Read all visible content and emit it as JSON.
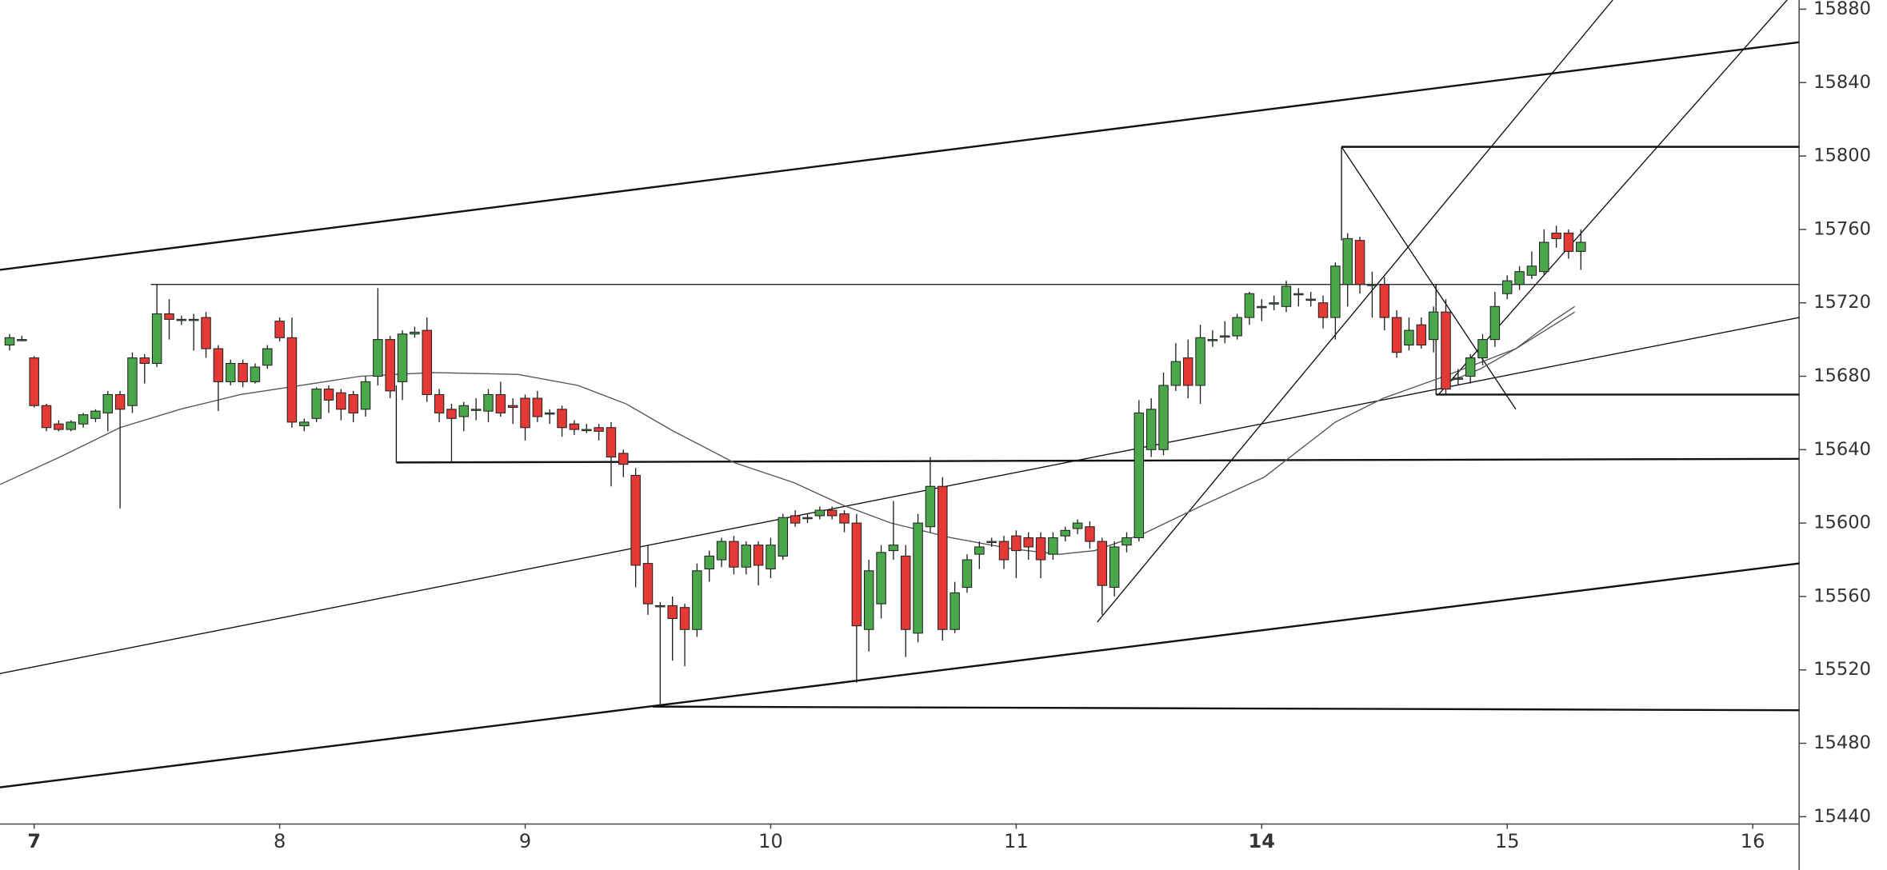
{
  "chart_data": {
    "type": "candlestick",
    "up_color": "#4aa84a",
    "down_color": "#e53935",
    "xlim": [
      -0.78,
      145.78
    ],
    "ylim": [
      15436,
      15885
    ],
    "xticks": [
      {
        "value": 2,
        "label": "7"
      },
      {
        "value": 22,
        "label": "8"
      },
      {
        "value": 42,
        "label": "9"
      },
      {
        "value": 62,
        "label": "10"
      },
      {
        "value": 82,
        "label": "11"
      },
      {
        "value": 102,
        "label": "14"
      },
      {
        "value": 122,
        "label": "15"
      },
      {
        "value": 142,
        "label": "16"
      }
    ],
    "yticks": [
      15440,
      15480,
      15520,
      15560,
      15600,
      15640,
      15680,
      15720,
      15760,
      15800,
      15840,
      15880
    ],
    "x": [
      0,
      1,
      2,
      3,
      4,
      5,
      6,
      7,
      8,
      9,
      10,
      11,
      12,
      13,
      14,
      15,
      16,
      17,
      18,
      19,
      20,
      21,
      22,
      23,
      24,
      25,
      26,
      27,
      28,
      29,
      30,
      31,
      32,
      33,
      34,
      35,
      36,
      37,
      38,
      39,
      40,
      41,
      42,
      43,
      44,
      45,
      46,
      47,
      48,
      49,
      50,
      51,
      52,
      53,
      54,
      55,
      56,
      57,
      58,
      59,
      60,
      61,
      62,
      63,
      64,
      65,
      66,
      67,
      68,
      69,
      70,
      71,
      72,
      73,
      74,
      75,
      76,
      77,
      78,
      79,
      80,
      81,
      82,
      83,
      84,
      85,
      86,
      87,
      88,
      89,
      90,
      91,
      92,
      93,
      94,
      95,
      96,
      97,
      98,
      99,
      100,
      101,
      102,
      103,
      104,
      105,
      106,
      107,
      108,
      109,
      110,
      111,
      112,
      113,
      114,
      115,
      116,
      117,
      118,
      119,
      120,
      121,
      122,
      123,
      124,
      125,
      126,
      127,
      128
    ],
    "open": [
      15697,
      15700,
      15690,
      15664,
      15654,
      15651,
      15654,
      15657,
      15660,
      15670,
      15664,
      15690,
      15687,
      15714,
      15711,
      15711,
      15712,
      15695,
      15677,
      15687,
      15677,
      15686,
      15710,
      15701,
      15653,
      15657,
      15673,
      15671,
      15670,
      15662,
      15680,
      15700,
      15677,
      15703,
      15705,
      15670,
      15662,
      15658,
      15662,
      15661,
      15670,
      15664,
      15668,
      15668,
      15660,
      15662,
      15654,
      15651,
      15652,
      15652,
      15638,
      15626,
      15578,
      15555,
      15555,
      15554,
      15542,
      15575,
      15580,
      15590,
      15576,
      15588,
      15575,
      15582,
      15604,
      15603,
      15604,
      15607,
      15605,
      15600,
      15542,
      15556,
      15585,
      15582,
      15540,
      15598,
      15620,
      15542,
      15565,
      15583,
      15590,
      15590,
      15593,
      15592,
      15592,
      15583,
      15593,
      15597,
      15598,
      15590,
      15565,
      15588,
      15592,
      15640,
      15640,
      15675,
      15690,
      15675,
      15700,
      15702,
      15702,
      15712,
      15718,
      15720,
      15718,
      15725,
      15722,
      15720,
      15712,
      15730,
      15754,
      15730,
      15730,
      15712,
      15697,
      15708,
      15700,
      15715,
      15679,
      15680,
      15690,
      15700,
      15725,
      15730,
      15735,
      15737,
      15758,
      15758,
      15748
    ],
    "high": [
      15703,
      15702,
      15691,
      15665,
      15656,
      15656,
      15660,
      15662,
      15672,
      15672,
      15693,
      15692,
      15730,
      15722,
      15713,
      15714,
      15715,
      15697,
      15689,
      15689,
      15687,
      15697,
      15712,
      15712,
      15657,
      15674,
      15675,
      15673,
      15672,
      15680,
      15728,
      15702,
      15705,
      15707,
      15712,
      15673,
      15665,
      15666,
      15668,
      15673,
      15677,
      15668,
      15670,
      15672,
      15662,
      15664,
      15656,
      15654,
      15654,
      15655,
      15640,
      15630,
      15588,
      15557,
      15560,
      15556,
      15578,
      15585,
      15592,
      15593,
      15590,
      15590,
      15592,
      15605,
      15607,
      15605,
      15609,
      15609,
      15607,
      15605,
      15580,
      15588,
      15612,
      15588,
      15605,
      15636,
      15625,
      15568,
      15583,
      15590,
      15592,
      15593,
      15596,
      15595,
      15595,
      15595,
      15598,
      15602,
      15601,
      15592,
      15590,
      15595,
      15667,
      15668,
      15682,
      15698,
      15700,
      15708,
      15705,
      15710,
      15714,
      15726,
      15722,
      15724,
      15732,
      15728,
      15726,
      15724,
      15742,
      15758,
      15756,
      15737,
      15734,
      15716,
      15712,
      15712,
      15718,
      15722,
      15684,
      15692,
      15703,
      15726,
      15735,
      15740,
      15748,
      15760,
      15762,
      15760,
      15760
    ],
    "low": [
      15694,
      15699,
      15663,
      15650,
      15650,
      15650,
      15652,
      15655,
      15650,
      15608,
      15660,
      15676,
      15685,
      15700,
      15708,
      15694,
      15690,
      15661,
      15675,
      15674,
      15676,
      15684,
      15699,
      15652,
      15650,
      15655,
      15660,
      15656,
      15655,
      15658,
      15675,
      15668,
      15667,
      15701,
      15666,
      15655,
      15633,
      15650,
      15656,
      15655,
      15658,
      15654,
      15645,
      15655,
      15654,
      15647,
      15648,
      15649,
      15645,
      15620,
      15625,
      15565,
      15550,
      15500,
      15525,
      15522,
      15538,
      15568,
      15576,
      15572,
      15572,
      15566,
      15570,
      15580,
      15598,
      15600,
      15602,
      15602,
      15595,
      15513,
      15530,
      15548,
      15580,
      15527,
      15535,
      15595,
      15536,
      15540,
      15562,
      15575,
      15587,
      15575,
      15570,
      15580,
      15570,
      15580,
      15590,
      15594,
      15586,
      15550,
      15560,
      15584,
      15590,
      15636,
      15637,
      15672,
      15668,
      15665,
      15696,
      15698,
      15700,
      15708,
      15710,
      15716,
      15715,
      15718,
      15718,
      15706,
      15700,
      15718,
      15725,
      15712,
      15705,
      15690,
      15694,
      15695,
      15693,
      15670,
      15675,
      15676,
      15686,
      15696,
      15722,
      15727,
      15733,
      15735,
      15750,
      15744,
      15738
    ],
    "close": [
      15701,
      15700,
      15664,
      15652,
      15651,
      15655,
      15659,
      15661,
      15670,
      15662,
      15690,
      15687,
      15714,
      15711,
      15711,
      15711,
      15695,
      15677,
      15687,
      15677,
      15685,
      15695,
      15701,
      15655,
      15655,
      15673,
      15667,
      15662,
      15660,
      15677,
      15700,
      15672,
      15703,
      15704,
      15670,
      15660,
      15657,
      15664,
      15662,
      15670,
      15660,
      15663,
      15652,
      15658,
      15660,
      15652,
      15651,
      15651,
      15650,
      15636,
      15632,
      15577,
      15556,
      15555,
      15548,
      15542,
      15574,
      15582,
      15590,
      15576,
      15588,
      15577,
      15588,
      15603,
      15600,
      15603,
      15607,
      15604,
      15600,
      15544,
      15574,
      15584,
      15588,
      15542,
      15600,
      15620,
      15542,
      15562,
      15580,
      15587,
      15590,
      15580,
      15585,
      15587,
      15580,
      15592,
      15596,
      15600,
      15590,
      15566,
      15587,
      15592,
      15660,
      15662,
      15675,
      15688,
      15675,
      15701,
      15700,
      15702,
      15712,
      15725,
      15718,
      15720,
      15729,
      15725,
      15722,
      15712,
      15740,
      15755,
      15730,
      15730,
      15712,
      15693,
      15705,
      15697,
      15715,
      15673,
      15679,
      15690,
      15700,
      15718,
      15732,
      15737,
      15740,
      15753,
      15755,
      15748,
      15753
    ],
    "lines": [
      {
        "color": "#555555",
        "x": [
          -0.78,
          4.1,
          9,
          13.9,
          18.8,
          24.7,
          28.6,
          34.5,
          41.4,
          46.3,
          50.2,
          54.1,
          59,
          63.9,
          67.8,
          71.8,
          76.7,
          81.6,
          85.5,
          88.4,
          92.3,
          97.3,
          102.2,
          105.1,
          108,
          111.9,
          116.9,
          122.7,
          127.5
        ],
        "values": [
          15621,
          15636,
          15652,
          15662,
          15670,
          15676,
          15680,
          15682,
          15681,
          15675,
          15665,
          15650,
          15633,
          15622,
          15610,
          15600,
          15592,
          15586,
          15583,
          15585,
          15594,
          15610,
          15625,
          15640,
          15655,
          15668,
          15680,
          15695,
          15715
        ]
      },
      {
        "color": "#555555",
        "x": [
          116.9,
          119.8,
          122.7,
          125.7,
          127.5
        ],
        "values": [
          15676,
          15684,
          15695,
          15710,
          15718
        ]
      }
    ],
    "drawings": [
      {
        "x": [
          -0.78,
          145.78
        ],
        "y": [
          15738,
          15862
        ]
      },
      {
        "x": [
          -0.78,
          145.78
        ],
        "y": [
          15456,
          15578
        ]
      },
      {
        "x": [
          -0.78,
          145.78
        ],
        "y": [
          15518,
          15712
        ]
      },
      {
        "x": [
          11.5,
          145.78
        ],
        "y": [
          15730,
          15730
        ]
      },
      {
        "x": [
          31.5,
          31.5
        ],
        "y": [
          15675,
          15633
        ]
      },
      {
        "x": [
          31.5,
          145.78
        ],
        "y": [
          15633,
          15635
        ]
      },
      {
        "x": [
          52.4,
          145.78
        ],
        "y": [
          15500,
          15498
        ]
      },
      {
        "x": [
          108.5,
          145.78
        ],
        "y": [
          15805,
          15805
        ]
      },
      {
        "x": [
          108.5,
          108.5
        ],
        "y": [
          15805,
          15754
        ]
      },
      {
        "x": [
          116.2,
          116.2
        ],
        "y": [
          15730,
          15670
        ]
      },
      {
        "x": [
          116.2,
          145.78
        ],
        "y": [
          15670,
          15670
        ]
      },
      {
        "x": [
          108.5,
          122.7
        ],
        "y": [
          15805,
          15662
        ]
      },
      {
        "x": [
          88.6,
          130.6
        ],
        "y": [
          15546,
          15885
        ]
      },
      {
        "x": [
          116.4,
          144.8
        ],
        "y": [
          15670,
          15885
        ]
      }
    ]
  }
}
